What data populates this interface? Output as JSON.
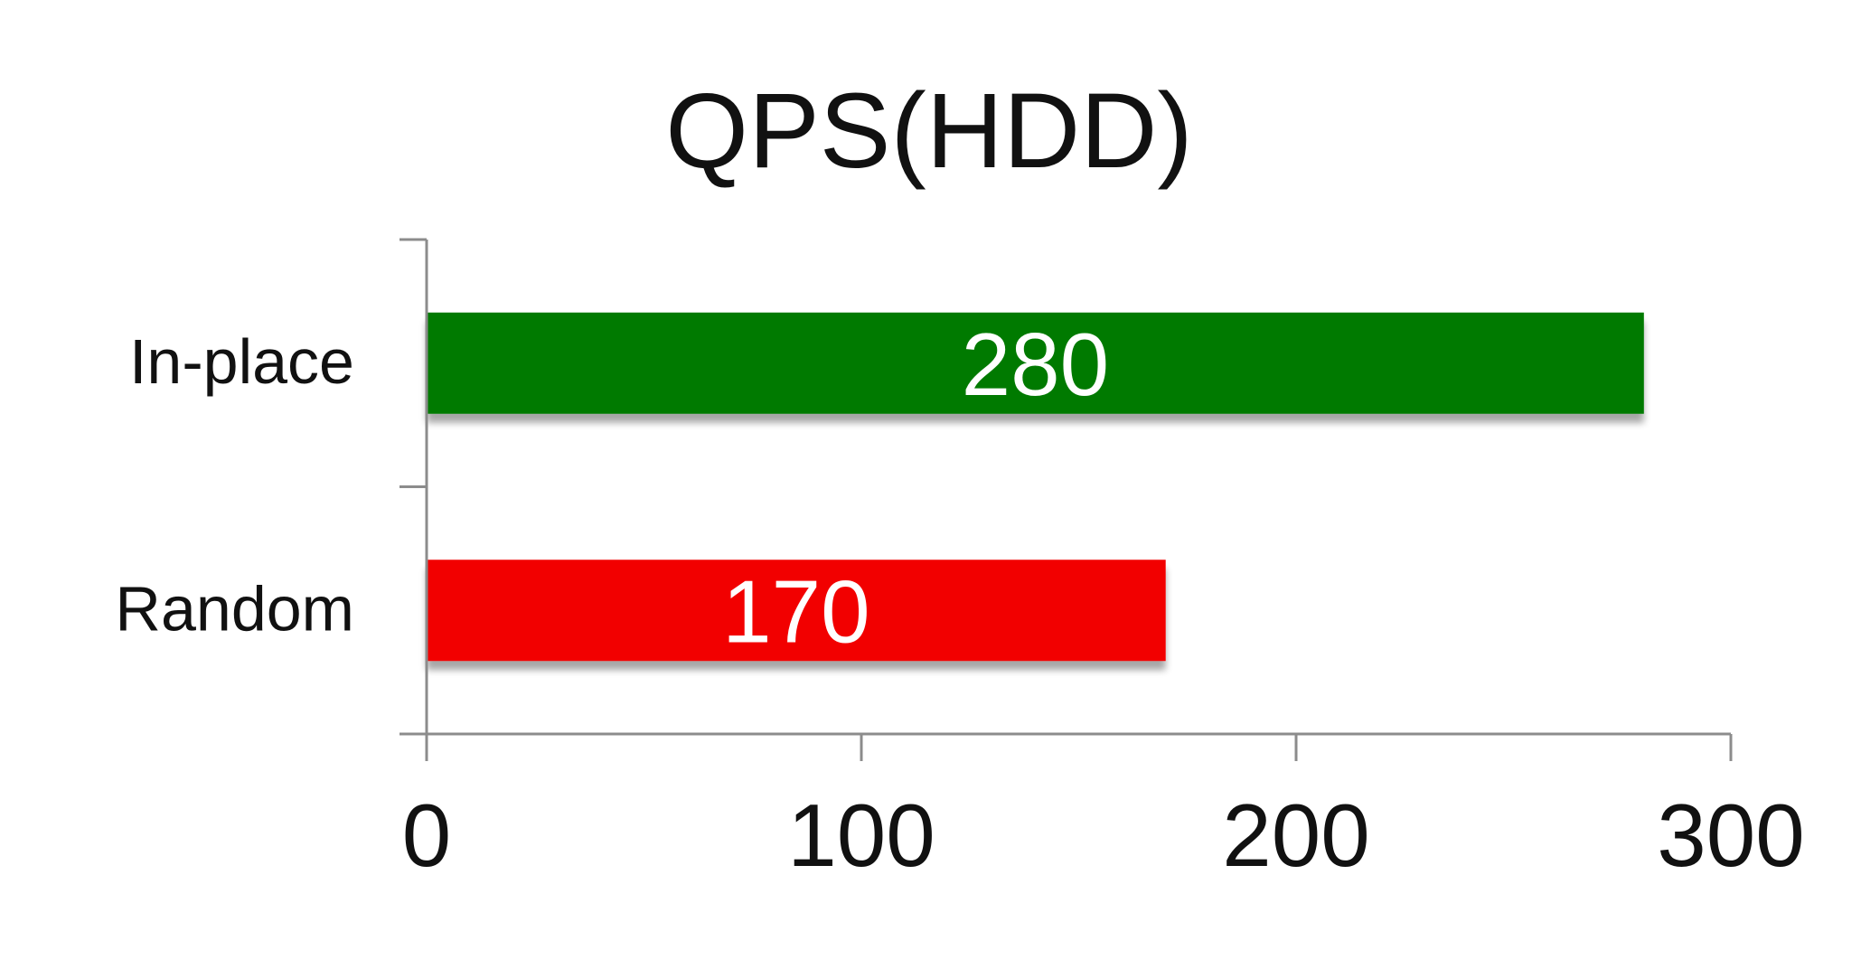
{
  "chart_data": {
    "type": "bar",
    "orientation": "horizontal",
    "title": "QPS(HDD)",
    "xlabel": "",
    "ylabel": "",
    "categories": [
      "In-place",
      "Random"
    ],
    "values": [
      280,
      170
    ],
    "bar_colors": [
      "#007a00",
      "#f20000"
    ],
    "value_label_color": "#ffffff",
    "xlim": [
      0,
      300
    ],
    "x_ticks": [
      0,
      100,
      200,
      300
    ],
    "grid": false,
    "legend": "none"
  }
}
